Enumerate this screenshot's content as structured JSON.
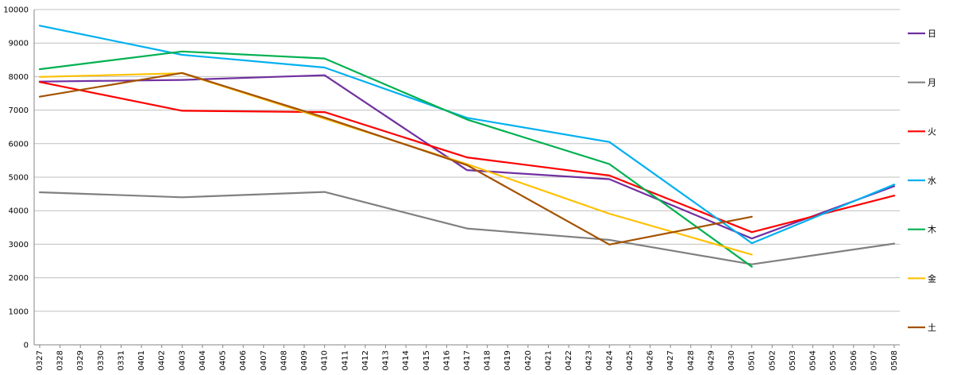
{
  "chart_data": {
    "type": "line",
    "title": "",
    "xlabel": "",
    "ylabel": "",
    "ylim": [
      0,
      10000
    ],
    "y_ticks": [
      0,
      1000,
      2000,
      3000,
      4000,
      5000,
      6000,
      7000,
      8000,
      9000,
      10000
    ],
    "grid": "horizontal",
    "legend_position": "right",
    "categories": [
      "0327",
      "0328",
      "0329",
      "0330",
      "0331",
      "0401",
      "0402",
      "0403",
      "0404",
      "0405",
      "0406",
      "0407",
      "0408",
      "0409",
      "0410",
      "0411",
      "0412",
      "0413",
      "0414",
      "0415",
      "0416",
      "0417",
      "0418",
      "0419",
      "0420",
      "0421",
      "0422",
      "0423",
      "0424",
      "0425",
      "0426",
      "0427",
      "0428",
      "0429",
      "0430",
      "0501",
      "0502",
      "0503",
      "0504",
      "0505",
      "0506",
      "0507",
      "0508"
    ],
    "series": [
      {
        "name": "日",
        "color": "#7030A0",
        "points": [
          [
            "0327",
            7850
          ],
          [
            "0403",
            7900
          ],
          [
            "0410",
            8040
          ],
          [
            "0417",
            5210
          ],
          [
            "0424",
            4940
          ],
          [
            "0501",
            3170
          ],
          [
            "0508",
            4730
          ]
        ]
      },
      {
        "name": "月",
        "color": "#808080",
        "points": [
          [
            "0327",
            4550
          ],
          [
            "0403",
            4400
          ],
          [
            "0410",
            4560
          ],
          [
            "0417",
            3470
          ],
          [
            "0424",
            3130
          ],
          [
            "0501",
            2400
          ],
          [
            "0508",
            3020
          ]
        ]
      },
      {
        "name": "火",
        "color": "#FF0000",
        "points": [
          [
            "0327",
            7840
          ],
          [
            "0403",
            6980
          ],
          [
            "0410",
            6940
          ],
          [
            "0417",
            5590
          ],
          [
            "0424",
            5050
          ],
          [
            "0501",
            3360
          ],
          [
            "0508",
            4450
          ]
        ]
      },
      {
        "name": "水",
        "color": "#00B0F0",
        "points": [
          [
            "0327",
            9520
          ],
          [
            "0403",
            8650
          ],
          [
            "0410",
            8270
          ],
          [
            "0417",
            6770
          ],
          [
            "0424",
            6050
          ],
          [
            "0501",
            3030
          ],
          [
            "0508",
            4780
          ]
        ]
      },
      {
        "name": "木",
        "color": "#00B050",
        "points": [
          [
            "0327",
            8220
          ],
          [
            "0403",
            8750
          ],
          [
            "0410",
            8540
          ],
          [
            "0417",
            6720
          ],
          [
            "0424",
            5390
          ],
          [
            "0501",
            2330
          ]
        ]
      },
      {
        "name": "金",
        "color": "#FFC000",
        "points": [
          [
            "0327",
            7990
          ],
          [
            "0403",
            8100
          ],
          [
            "0417",
            5390
          ],
          [
            "0424",
            3910
          ],
          [
            "0501",
            2690
          ]
        ]
      },
      {
        "name": "土",
        "color": "#A35200",
        "points": [
          [
            "0327",
            7400
          ],
          [
            "0403",
            8110
          ],
          [
            "0410",
            6780
          ],
          [
            "0417",
            5360
          ],
          [
            "0424",
            2990
          ],
          [
            "0501",
            3820
          ]
        ]
      }
    ]
  }
}
